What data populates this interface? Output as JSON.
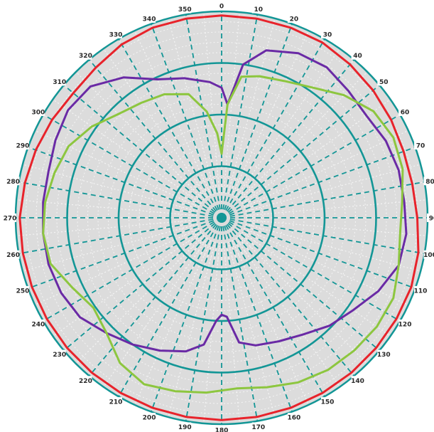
{
  "chart_data": {
    "type": "polar-line",
    "title": "",
    "angle_unit": "degrees",
    "angle_zero": "top",
    "angle_direction": "clockwise",
    "r_range": [
      0,
      1
    ],
    "grid": true,
    "ring_values": [
      0.25,
      0.5,
      0.75,
      1.0
    ],
    "spoke_step_deg": 10,
    "minor_step_deg": 5,
    "colors": {
      "background": "#ffffff",
      "plot_fill": "#dcdcdc",
      "grid": "#139696",
      "minor_grid": "#f4f4f4",
      "outer_ring": "#139696"
    },
    "angle_tick_labels": [
      {
        "angle": 0,
        "text": "0"
      },
      {
        "angle": 10,
        "text": "10"
      },
      {
        "angle": 20,
        "text": "20"
      },
      {
        "angle": 30,
        "text": "30"
      },
      {
        "angle": 40,
        "text": "40"
      },
      {
        "angle": 50,
        "text": "50"
      },
      {
        "angle": 60,
        "text": "60"
      },
      {
        "angle": 70,
        "text": "70"
      },
      {
        "angle": 80,
        "text": "80"
      },
      {
        "angle": 90,
        "text": "90"
      },
      {
        "angle": 100,
        "text": "100"
      },
      {
        "angle": 110,
        "text": "110"
      },
      {
        "angle": 120,
        "text": "120"
      },
      {
        "angle": 130,
        "text": "130"
      },
      {
        "angle": 140,
        "text": "140"
      },
      {
        "angle": 150,
        "text": "150"
      },
      {
        "angle": 160,
        "text": "160"
      },
      {
        "angle": 170,
        "text": "170"
      },
      {
        "angle": 180,
        "text": "180"
      },
      {
        "angle": 190,
        "text": "190"
      },
      {
        "angle": 200,
        "text": "200"
      },
      {
        "angle": 210,
        "text": "210"
      },
      {
        "angle": 220,
        "text": "220"
      },
      {
        "angle": 230,
        "text": "230"
      },
      {
        "angle": 240,
        "text": "240"
      },
      {
        "angle": 250,
        "text": "250"
      },
      {
        "angle": 260,
        "text": "260"
      },
      {
        "angle": 270,
        "text": "270"
      },
      {
        "angle": 280,
        "text": "280"
      },
      {
        "angle": 290,
        "text": "290"
      },
      {
        "angle": 300,
        "text": "300"
      },
      {
        "angle": 310,
        "text": "310"
      },
      {
        "angle": 320,
        "text": "320"
      },
      {
        "angle": 330,
        "text": "330"
      },
      {
        "angle": 340,
        "text": "340"
      },
      {
        "angle": 350,
        "text": "350"
      }
    ],
    "series": [
      {
        "color": "#e8232b",
        "points": [
          [
            0,
            0.98
          ],
          [
            10,
            0.98
          ],
          [
            20,
            0.98
          ],
          [
            30,
            0.98
          ],
          [
            40,
            0.97
          ],
          [
            50,
            0.96
          ],
          [
            60,
            0.95
          ],
          [
            70,
            0.94
          ],
          [
            80,
            0.94
          ],
          [
            90,
            0.95
          ],
          [
            100,
            0.97
          ],
          [
            110,
            0.98
          ],
          [
            120,
            0.98
          ],
          [
            130,
            0.98
          ],
          [
            140,
            0.98
          ],
          [
            150,
            0.98
          ],
          [
            160,
            0.98
          ],
          [
            170,
            0.98
          ],
          [
            180,
            0.98
          ],
          [
            190,
            0.98
          ],
          [
            200,
            0.98
          ],
          [
            210,
            0.98
          ],
          [
            220,
            0.98
          ],
          [
            230,
            0.98
          ],
          [
            240,
            0.98
          ],
          [
            250,
            0.98
          ],
          [
            260,
            0.98
          ],
          [
            270,
            0.98
          ],
          [
            280,
            0.97
          ],
          [
            290,
            0.96
          ],
          [
            300,
            0.95
          ],
          [
            310,
            0.94
          ],
          [
            320,
            0.95
          ],
          [
            330,
            0.97
          ],
          [
            340,
            0.98
          ],
          [
            350,
            0.98
          ],
          [
            360,
            0.98
          ]
        ]
      },
      {
        "color": "#6a2aa5",
        "points": [
          [
            0,
            0.63
          ],
          [
            3,
            0.55
          ],
          [
            8,
            0.75
          ],
          [
            15,
            0.84
          ],
          [
            25,
            0.88
          ],
          [
            35,
            0.89
          ],
          [
            45,
            0.87
          ],
          [
            55,
            0.86
          ],
          [
            65,
            0.88
          ],
          [
            75,
            0.89
          ],
          [
            85,
            0.89
          ],
          [
            95,
            0.9
          ],
          [
            105,
            0.89
          ],
          [
            115,
            0.84
          ],
          [
            125,
            0.78
          ],
          [
            135,
            0.74
          ],
          [
            145,
            0.69
          ],
          [
            155,
            0.66
          ],
          [
            165,
            0.64
          ],
          [
            172,
            0.61
          ],
          [
            177,
            0.48
          ],
          [
            180,
            0.47
          ],
          [
            183,
            0.5
          ],
          [
            188,
            0.62
          ],
          [
            195,
            0.67
          ],
          [
            205,
            0.71
          ],
          [
            215,
            0.75
          ],
          [
            225,
            0.79
          ],
          [
            235,
            0.84
          ],
          [
            245,
            0.86
          ],
          [
            255,
            0.87
          ],
          [
            265,
            0.87
          ],
          [
            275,
            0.87
          ],
          [
            285,
            0.87
          ],
          [
            295,
            0.89
          ],
          [
            305,
            0.91
          ],
          [
            315,
            0.9
          ],
          [
            325,
            0.83
          ],
          [
            335,
            0.74
          ],
          [
            345,
            0.7
          ],
          [
            355,
            0.66
          ],
          [
            360,
            0.63
          ]
        ]
      },
      {
        "color": "#8dc63f",
        "points": [
          [
            0,
            0.31
          ],
          [
            3,
            0.55
          ],
          [
            8,
            0.69
          ],
          [
            15,
            0.71
          ],
          [
            25,
            0.73
          ],
          [
            35,
            0.77
          ],
          [
            45,
            0.84
          ],
          [
            55,
            0.9
          ],
          [
            65,
            0.92
          ],
          [
            75,
            0.91
          ],
          [
            85,
            0.88
          ],
          [
            95,
            0.87
          ],
          [
            105,
            0.89
          ],
          [
            115,
            0.92
          ],
          [
            125,
            0.92
          ],
          [
            135,
            0.91
          ],
          [
            145,
            0.9
          ],
          [
            155,
            0.88
          ],
          [
            165,
            0.85
          ],
          [
            175,
            0.83
          ],
          [
            185,
            0.85
          ],
          [
            195,
            0.87
          ],
          [
            205,
            0.89
          ],
          [
            215,
            0.86
          ],
          [
            225,
            0.79
          ],
          [
            235,
            0.76
          ],
          [
            245,
            0.8
          ],
          [
            255,
            0.86
          ],
          [
            265,
            0.87
          ],
          [
            275,
            0.86
          ],
          [
            285,
            0.84
          ],
          [
            295,
            0.82
          ],
          [
            305,
            0.77
          ],
          [
            315,
            0.71
          ],
          [
            325,
            0.68
          ],
          [
            335,
            0.66
          ],
          [
            345,
            0.62
          ],
          [
            352,
            0.52
          ],
          [
            357,
            0.41
          ],
          [
            360,
            0.31
          ]
        ]
      }
    ]
  }
}
